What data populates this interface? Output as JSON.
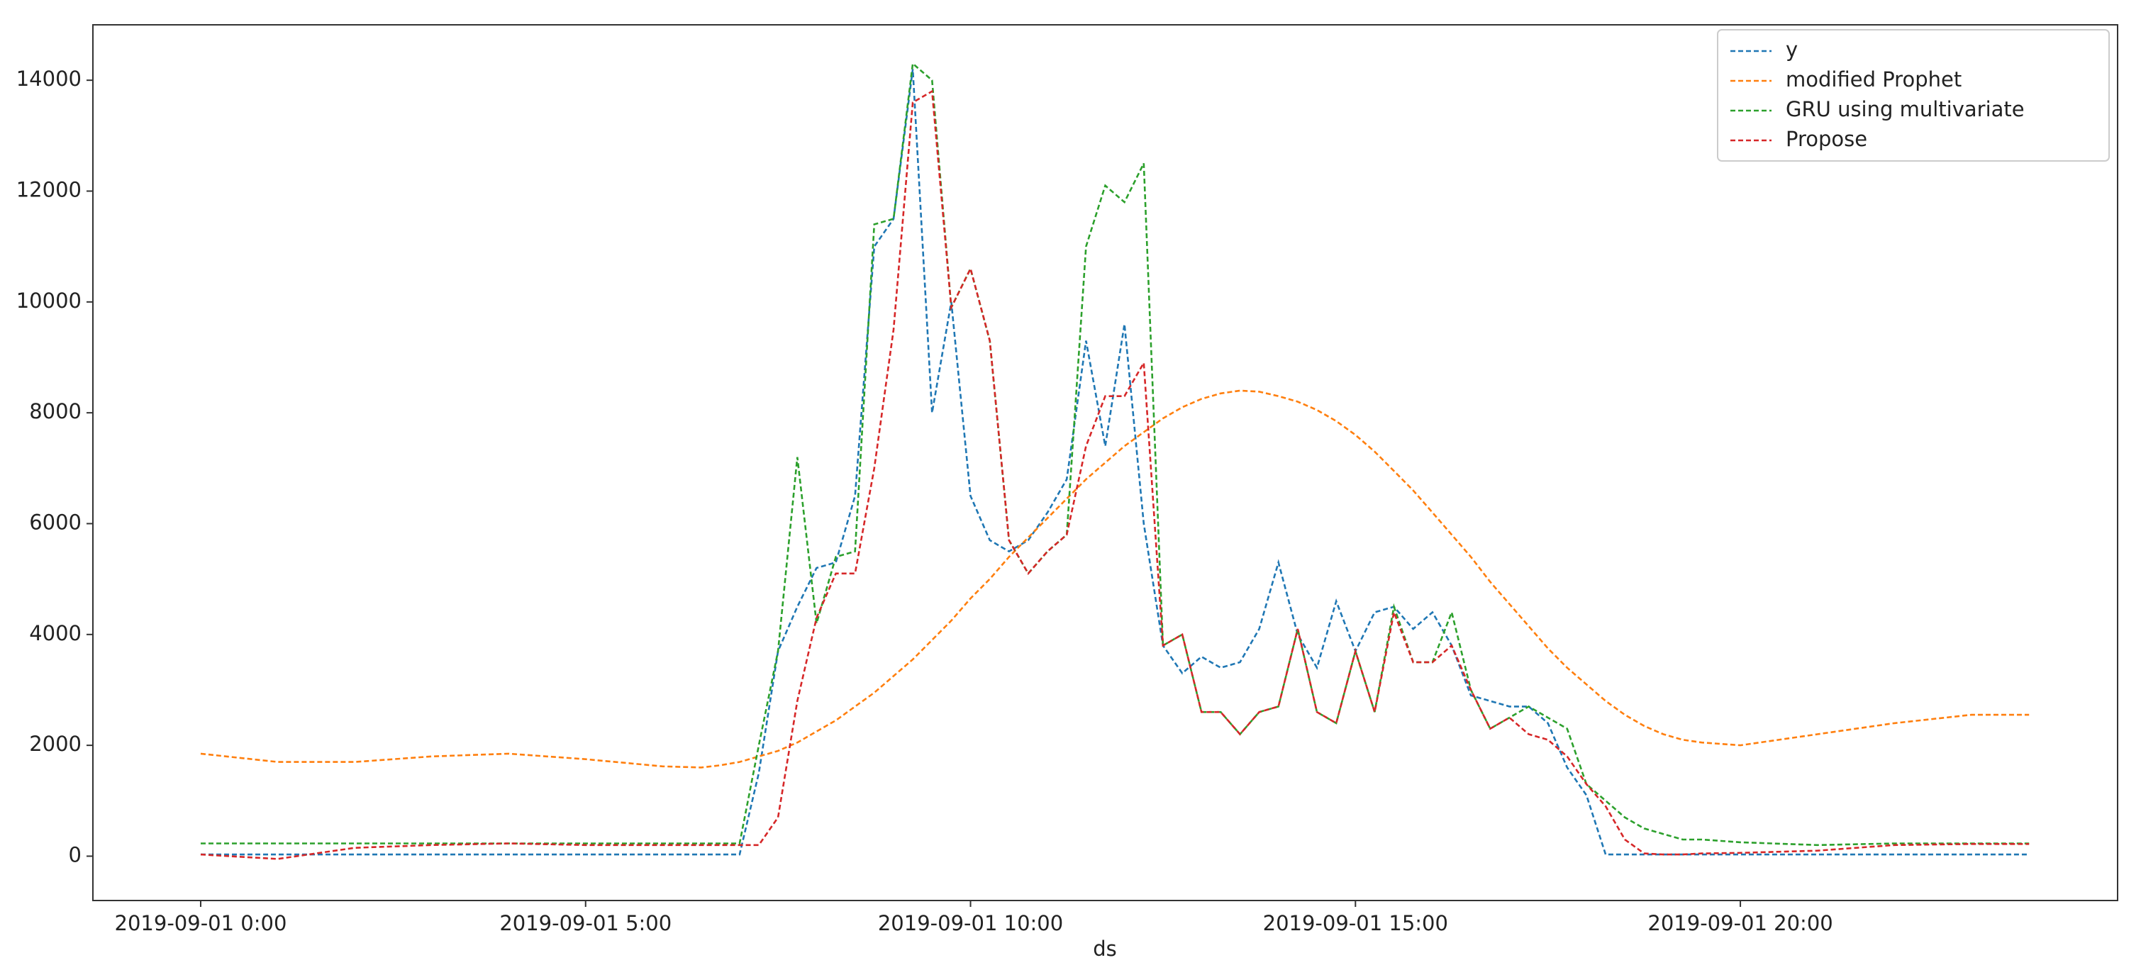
{
  "chart_data": {
    "type": "line",
    "x_label": "ds",
    "x": [
      0,
      1,
      2,
      3,
      4,
      5,
      6,
      6.5,
      6.75,
      7,
      7.25,
      7.5,
      7.75,
      8,
      8.25,
      8.5,
      8.75,
      9,
      9.25,
      9.5,
      9.75,
      10,
      10.25,
      10.5,
      10.75,
      11,
      11.25,
      11.5,
      11.75,
      12,
      12.25,
      12.5,
      12.75,
      13,
      13.25,
      13.5,
      13.75,
      14,
      14.25,
      14.5,
      14.75,
      15,
      15.25,
      15.5,
      15.75,
      16,
      16.25,
      16.5,
      16.75,
      17,
      17.25,
      17.5,
      17.75,
      18,
      18.25,
      18.5,
      18.75,
      19,
      19.25,
      19.5,
      20,
      21,
      22,
      23,
      23.75
    ],
    "series": [
      {
        "name": "y",
        "color": "#1f77b4",
        "values": [
          30,
          30,
          30,
          30,
          30,
          30,
          30,
          30,
          30,
          30,
          1500,
          3700,
          4500,
          5200,
          5300,
          6500,
          11000,
          11500,
          14200,
          8000,
          10000,
          6500,
          5700,
          5500,
          5700,
          6200,
          6800,
          9300,
          7400,
          9600,
          6000,
          3800,
          3300,
          3600,
          3400,
          3500,
          4100,
          5300,
          4000,
          3400,
          4600,
          3700,
          4400,
          4500,
          4100,
          4400,
          3800,
          2900,
          2800,
          2700,
          2700,
          2400,
          1600,
          1100,
          30,
          30,
          30,
          30,
          30,
          30,
          30,
          30,
          30,
          30,
          30
        ]
      },
      {
        "name": "modified Prophet",
        "color": "#ff7f0e",
        "values": [
          1850,
          1700,
          1700,
          1800,
          1850,
          1750,
          1620,
          1600,
          1640,
          1700,
          1800,
          1900,
          2050,
          2250,
          2450,
          2700,
          2950,
          3250,
          3550,
          3900,
          4250,
          4650,
          5000,
          5400,
          5750,
          6100,
          6450,
          6800,
          7100,
          7400,
          7650,
          7900,
          8100,
          8250,
          8350,
          8400,
          8380,
          8300,
          8200,
          8050,
          7850,
          7600,
          7300,
          6950,
          6600,
          6200,
          5800,
          5400,
          4950,
          4550,
          4150,
          3750,
          3400,
          3100,
          2800,
          2550,
          2350,
          2200,
          2100,
          2050,
          2000,
          2200,
          2400,
          2550,
          2550
        ]
      },
      {
        "name": "GRU using multivariate",
        "color": "#2ca02c",
        "values": [
          230,
          230,
          230,
          230,
          230,
          230,
          230,
          230,
          230,
          230,
          2000,
          3700,
          7200,
          4200,
          5400,
          5500,
          11400,
          11500,
          14300,
          14000,
          9900,
          10600,
          9300,
          5700,
          5100,
          5500,
          5800,
          11000,
          12100,
          11800,
          12500,
          3800,
          4000,
          2600,
          2600,
          2200,
          2600,
          2700,
          4100,
          2600,
          2400,
          3700,
          2600,
          4500,
          3500,
          3500,
          4400,
          3000,
          2300,
          2500,
          2700,
          2500,
          2300,
          1300,
          1000,
          700,
          500,
          400,
          300,
          300,
          250,
          200,
          230,
          230,
          230
        ]
      },
      {
        "name": "Propose",
        "color": "#d62728",
        "values": [
          30,
          -50,
          150,
          200,
          230,
          200,
          200,
          200,
          200,
          200,
          200,
          700,
          2800,
          4300,
          5100,
          5100,
          7000,
          9500,
          13600,
          13800,
          9900,
          10600,
          9300,
          5700,
          5100,
          5500,
          5800,
          7400,
          8300,
          8300,
          8900,
          3800,
          4000,
          2600,
          2600,
          2200,
          2600,
          2700,
          4100,
          2600,
          2400,
          3700,
          2600,
          4400,
          3500,
          3500,
          3800,
          3000,
          2300,
          2500,
          2200,
          2100,
          1800,
          1300,
          900,
          300,
          50,
          30,
          30,
          50,
          60,
          100,
          200,
          220,
          220
        ]
      }
    ],
    "xlim": [
      -1.4,
      24.9
    ],
    "ylim": [
      -800,
      15000
    ],
    "xticks": [
      {
        "value": 0,
        "label": "2019-09-01 0:00"
      },
      {
        "value": 5,
        "label": "2019-09-01 5:00"
      },
      {
        "value": 10,
        "label": "2019-09-01 10:00"
      },
      {
        "value": 15,
        "label": "2019-09-01 15:00"
      },
      {
        "value": 20,
        "label": "2019-09-01 20:00"
      }
    ],
    "yticks": [
      0,
      2000,
      4000,
      6000,
      8000,
      10000,
      12000,
      14000
    ],
    "grid": false,
    "legend": "upper right",
    "line_style": "dashed"
  }
}
